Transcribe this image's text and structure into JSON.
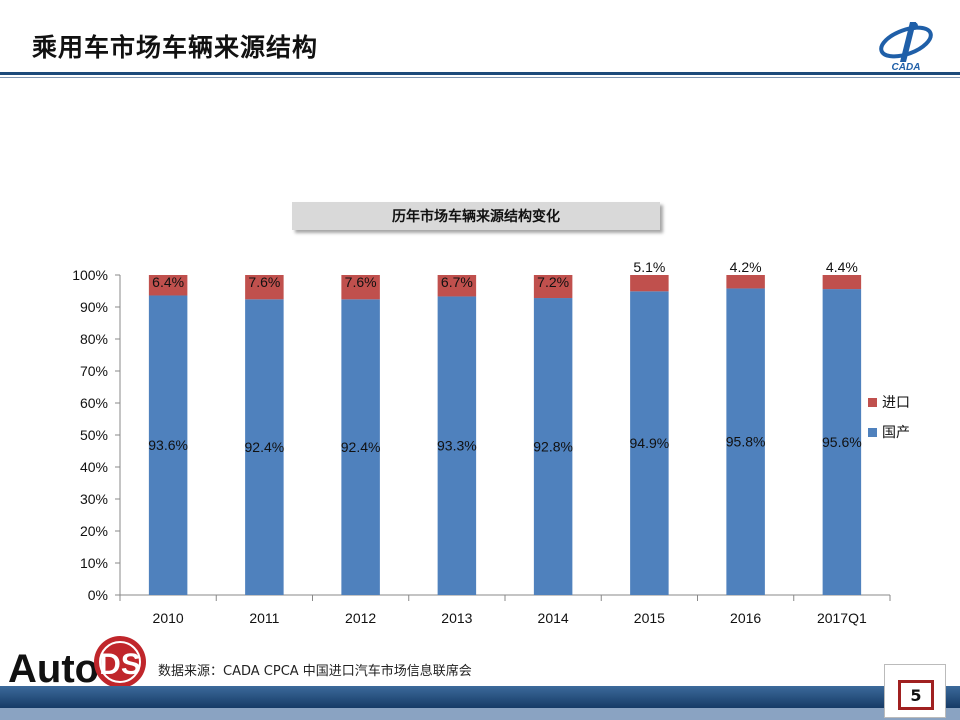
{
  "header": {
    "title": "乘用车市场车辆来源结构"
  },
  "logo": {
    "text": "CADA"
  },
  "chart_title": "历年市场车辆来源结构变化",
  "source_note": "数据来源：CADA  CPCA  中国进口汽车市场信息联席会",
  "autods_logo": {
    "text_auto": "Auto",
    "text_ds": "DS"
  },
  "page_number": "5",
  "colors": {
    "domestic": "#4f81bd",
    "import": "#c0504d",
    "header_rule": "#1c4a7a"
  },
  "chart_data": {
    "type": "bar",
    "stacked": true,
    "categories": [
      "2010",
      "2011",
      "2012",
      "2013",
      "2014",
      "2015",
      "2016",
      "2017Q1"
    ],
    "series": [
      {
        "name": "国产",
        "values": [
          93.6,
          92.4,
          92.4,
          93.3,
          92.8,
          94.9,
          95.8,
          95.6
        ],
        "labels": [
          "93.6%",
          "92.4%",
          "92.4%",
          "93.3%",
          "92.8%",
          "94.9%",
          "95.8%",
          "95.6%"
        ]
      },
      {
        "name": "进口",
        "values": [
          6.4,
          7.6,
          7.6,
          6.7,
          7.2,
          5.1,
          4.2,
          4.4
        ],
        "labels": [
          "6.4%",
          "7.6%",
          "7.6%",
          "6.7%",
          "7.2%",
          "5.1%",
          "4.2%",
          "4.4%"
        ]
      }
    ],
    "ylim": [
      0,
      100
    ],
    "yticks": [
      "0%",
      "10%",
      "20%",
      "30%",
      "40%",
      "50%",
      "60%",
      "70%",
      "80%",
      "90%",
      "100%"
    ],
    "legend": "right",
    "grid": false
  }
}
